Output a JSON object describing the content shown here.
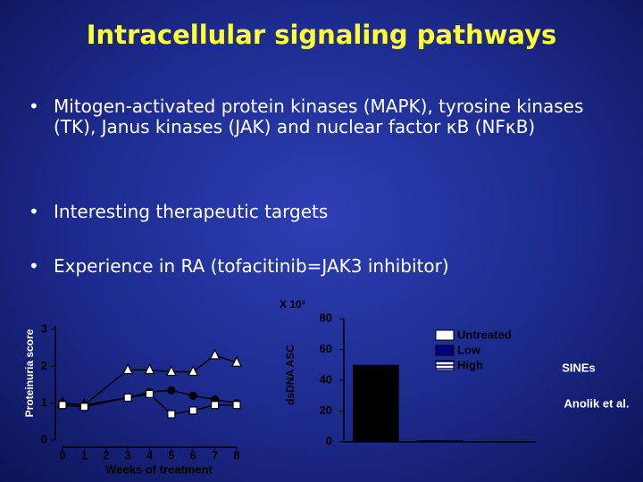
{
  "title": "Intracellular signaling pathways",
  "bullets": [
    "Mitogen-activated protein kinases (MAPK), tyrosine kinases (TK), Janus kinases (JAK) and nuclear factor κB (NFκB)",
    "Interesting therapeutic targets",
    "Experience in RA (tofacitinib=JAK3 inhibitor)"
  ],
  "chart_data": [
    {
      "type": "line",
      "y_label": "Proteinuria score",
      "x_label": "Weeks of treatment",
      "x": [
        0,
        1,
        3,
        4,
        5,
        6,
        7,
        8
      ],
      "series": [
        {
          "color": "#000000",
          "marker": "triangle",
          "values": [
            1.0,
            0.95,
            1.9,
            1.9,
            1.85,
            1.85,
            2.3,
            2.1
          ]
        },
        {
          "color": "#000000",
          "marker": "circle",
          "values": [
            1.0,
            0.95,
            1.15,
            1.3,
            1.35,
            1.2,
            1.1,
            1.0
          ]
        },
        {
          "color": "#000000",
          "marker": "square",
          "values": [
            0.95,
            0.9,
            1.15,
            1.25,
            0.7,
            0.8,
            0.95,
            0.95
          ]
        }
      ],
      "xlim": [
        0,
        8
      ],
      "xticks": [
        0,
        1,
        2,
        3,
        4,
        5,
        6,
        7,
        8
      ],
      "ylim": [
        0,
        3
      ],
      "yticks": [
        0,
        1,
        2,
        3
      ]
    },
    {
      "type": "bar",
      "y_label": "dsDNA ASC",
      "unit_label": "X 10³",
      "categories": [
        "Untreated",
        "Low",
        "High"
      ],
      "values": [
        50,
        1,
        0.5
      ],
      "color": "#000000",
      "legend_colors": [
        "#ffffff",
        "#000080",
        "#000080"
      ],
      "legend_fills": [
        "solid",
        "solid",
        "lines"
      ],
      "legend": "top-right",
      "ylim": [
        0,
        80
      ],
      "yticks": [
        0,
        20,
        40,
        60,
        80
      ]
    }
  ],
  "labels": [
    "SINEs",
    "Anolik et al."
  ]
}
